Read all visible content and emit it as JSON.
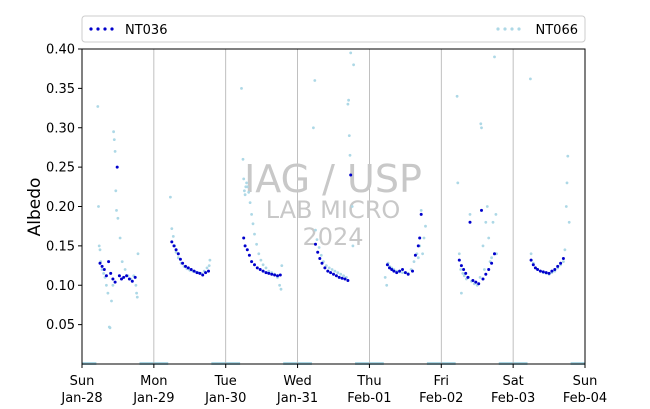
{
  "chart_data": {
    "type": "scatter",
    "title": "",
    "ylabel": "Albedo",
    "xlabel": "",
    "ylim": [
      0.0,
      0.4
    ],
    "yticks": [
      0.05,
      0.1,
      0.15,
      0.2,
      0.25,
      0.3,
      0.35,
      0.4
    ],
    "ytick_labels": [
      "0.05",
      "0.10",
      "0.15",
      "0.20",
      "0.25",
      "0.30",
      "0.35",
      "0.40"
    ],
    "xlim_days": [
      0,
      7
    ],
    "xticks": [
      {
        "day": 0,
        "weekday": "Sun",
        "date": "Jan-28"
      },
      {
        "day": 1,
        "weekday": "Mon",
        "date": "Jan-29"
      },
      {
        "day": 2,
        "weekday": "Tue",
        "date": "Jan-30"
      },
      {
        "day": 3,
        "weekday": "Wed",
        "date": "Jan-31"
      },
      {
        "day": 4,
        "weekday": "Thu",
        "date": "Feb-01"
      },
      {
        "day": 5,
        "weekday": "Fri",
        "date": "Feb-02"
      },
      {
        "day": 6,
        "weekday": "Sat",
        "date": "Feb-03"
      },
      {
        "day": 7,
        "weekday": "Sun",
        "date": "Feb-04"
      }
    ],
    "grid": "vertical at day boundaries",
    "legend_placement": "top, above plot",
    "watermark": [
      "IAG / USP",
      "LAB MICRO",
      "2024"
    ],
    "series": [
      {
        "name": "NT036",
        "color": "#0000cc",
        "points": [
          [
            0.25,
            0.128
          ],
          [
            0.28,
            0.124
          ],
          [
            0.31,
            0.12
          ],
          [
            0.34,
            0.112
          ],
          [
            0.37,
            0.13
          ],
          [
            0.4,
            0.115
          ],
          [
            0.43,
            0.108
          ],
          [
            0.46,
            0.104
          ],
          [
            0.49,
            0.25
          ],
          [
            0.52,
            0.112
          ],
          [
            0.55,
            0.108
          ],
          [
            0.58,
            0.11
          ],
          [
            0.62,
            0.112
          ],
          [
            0.66,
            0.108
          ],
          [
            0.7,
            0.105
          ],
          [
            0.74,
            0.11
          ],
          [
            1.25,
            0.155
          ],
          [
            1.28,
            0.15
          ],
          [
            1.31,
            0.145
          ],
          [
            1.34,
            0.14
          ],
          [
            1.37,
            0.133
          ],
          [
            1.4,
            0.128
          ],
          [
            1.44,
            0.124
          ],
          [
            1.48,
            0.122
          ],
          [
            1.52,
            0.12
          ],
          [
            1.56,
            0.118
          ],
          [
            1.6,
            0.116
          ],
          [
            1.64,
            0.115
          ],
          [
            1.68,
            0.113
          ],
          [
            1.72,
            0.116
          ],
          [
            1.76,
            0.118
          ],
          [
            2.25,
            0.16
          ],
          [
            2.27,
            0.15
          ],
          [
            2.3,
            0.145
          ],
          [
            2.33,
            0.138
          ],
          [
            2.36,
            0.13
          ],
          [
            2.4,
            0.126
          ],
          [
            2.44,
            0.122
          ],
          [
            2.48,
            0.12
          ],
          [
            2.52,
            0.118
          ],
          [
            2.56,
            0.116
          ],
          [
            2.6,
            0.115
          ],
          [
            2.64,
            0.114
          ],
          [
            2.68,
            0.113
          ],
          [
            2.72,
            0.112
          ],
          [
            2.76,
            0.113
          ],
          [
            3.25,
            0.152
          ],
          [
            3.28,
            0.142
          ],
          [
            3.31,
            0.134
          ],
          [
            3.34,
            0.128
          ],
          [
            3.38,
            0.122
          ],
          [
            3.42,
            0.118
          ],
          [
            3.46,
            0.116
          ],
          [
            3.5,
            0.114
          ],
          [
            3.54,
            0.112
          ],
          [
            3.58,
            0.11
          ],
          [
            3.62,
            0.109
          ],
          [
            3.66,
            0.108
          ],
          [
            3.7,
            0.106
          ],
          [
            3.74,
            0.24
          ],
          [
            4.25,
            0.126
          ],
          [
            4.28,
            0.122
          ],
          [
            4.31,
            0.12
          ],
          [
            4.34,
            0.118
          ],
          [
            4.38,
            0.116
          ],
          [
            4.42,
            0.118
          ],
          [
            4.46,
            0.12
          ],
          [
            4.5,
            0.116
          ],
          [
            4.54,
            0.114
          ],
          [
            4.6,
            0.118
          ],
          [
            4.64,
            0.138
          ],
          [
            4.68,
            0.15
          ],
          [
            4.7,
            0.16
          ],
          [
            4.72,
            0.19
          ],
          [
            5.25,
            0.132
          ],
          [
            5.28,
            0.125
          ],
          [
            5.31,
            0.12
          ],
          [
            5.34,
            0.115
          ],
          [
            5.37,
            0.11
          ],
          [
            5.4,
            0.18
          ],
          [
            5.44,
            0.106
          ],
          [
            5.48,
            0.104
          ],
          [
            5.52,
            0.102
          ],
          [
            5.56,
            0.195
          ],
          [
            5.58,
            0.108
          ],
          [
            5.62,
            0.114
          ],
          [
            5.66,
            0.12
          ],
          [
            5.7,
            0.128
          ],
          [
            5.74,
            0.14
          ],
          [
            6.25,
            0.132
          ],
          [
            6.28,
            0.126
          ],
          [
            6.31,
            0.122
          ],
          [
            6.34,
            0.12
          ],
          [
            6.38,
            0.118
          ],
          [
            6.42,
            0.117
          ],
          [
            6.46,
            0.116
          ],
          [
            6.5,
            0.115
          ],
          [
            6.54,
            0.118
          ],
          [
            6.58,
            0.12
          ],
          [
            6.62,
            0.124
          ],
          [
            6.66,
            0.128
          ],
          [
            6.7,
            0.134
          ]
        ]
      },
      {
        "name": "NT066",
        "color": "#add8e6",
        "points": [
          [
            0.22,
            0.327
          ],
          [
            0.23,
            0.2
          ],
          [
            0.24,
            0.15
          ],
          [
            0.25,
            0.145
          ],
          [
            0.26,
            0.13
          ],
          [
            0.28,
            0.12
          ],
          [
            0.3,
            0.115
          ],
          [
            0.32,
            0.11
          ],
          [
            0.34,
            0.1
          ],
          [
            0.36,
            0.09
          ],
          [
            0.38,
            0.047
          ],
          [
            0.39,
            0.046
          ],
          [
            0.41,
            0.08
          ],
          [
            0.43,
            0.1
          ],
          [
            0.44,
            0.295
          ],
          [
            0.45,
            0.285
          ],
          [
            0.46,
            0.27
          ],
          [
            0.47,
            0.22
          ],
          [
            0.48,
            0.195
          ],
          [
            0.5,
            0.185
          ],
          [
            0.53,
            0.16
          ],
          [
            0.56,
            0.13
          ],
          [
            0.6,
            0.12
          ],
          [
            0.64,
            0.112
          ],
          [
            0.68,
            0.108
          ],
          [
            0.72,
            0.112
          ],
          [
            0.75,
            0.1
          ],
          [
            0.76,
            0.09
          ],
          [
            0.77,
            0.085
          ],
          [
            0.78,
            0.14
          ],
          [
            1.23,
            0.212
          ],
          [
            1.25,
            0.172
          ],
          [
            1.27,
            0.162
          ],
          [
            1.29,
            0.15
          ],
          [
            1.31,
            0.142
          ],
          [
            1.34,
            0.135
          ],
          [
            1.38,
            0.128
          ],
          [
            1.42,
            0.124
          ],
          [
            1.46,
            0.121
          ],
          [
            1.5,
            0.119
          ],
          [
            1.54,
            0.118
          ],
          [
            1.58,
            0.117
          ],
          [
            1.62,
            0.116
          ],
          [
            1.66,
            0.115
          ],
          [
            1.7,
            0.118
          ],
          [
            1.74,
            0.122
          ],
          [
            1.77,
            0.125
          ],
          [
            1.78,
            0.132
          ],
          [
            2.22,
            0.35
          ],
          [
            2.24,
            0.26
          ],
          [
            2.25,
            0.235
          ],
          [
            2.26,
            0.22
          ],
          [
            2.27,
            0.215
          ],
          [
            2.28,
            0.225
          ],
          [
            2.29,
            0.23
          ],
          [
            2.3,
            0.225
          ],
          [
            2.32,
            0.218
          ],
          [
            2.34,
            0.205
          ],
          [
            2.36,
            0.19
          ],
          [
            2.38,
            0.178
          ],
          [
            2.4,
            0.165
          ],
          [
            2.43,
            0.152
          ],
          [
            2.46,
            0.14
          ],
          [
            2.49,
            0.132
          ],
          [
            2.52,
            0.126
          ],
          [
            2.56,
            0.122
          ],
          [
            2.6,
            0.118
          ],
          [
            2.64,
            0.116
          ],
          [
            2.68,
            0.114
          ],
          [
            2.72,
            0.11
          ],
          [
            2.75,
            0.1
          ],
          [
            2.77,
            0.095
          ],
          [
            2.78,
            0.125
          ],
          [
            3.22,
            0.3
          ],
          [
            3.24,
            0.36
          ],
          [
            3.25,
            0.17
          ],
          [
            3.27,
            0.158
          ],
          [
            3.3,
            0.148
          ],
          [
            3.33,
            0.138
          ],
          [
            3.36,
            0.13
          ],
          [
            3.4,
            0.125
          ],
          [
            3.44,
            0.122
          ],
          [
            3.48,
            0.12
          ],
          [
            3.52,
            0.118
          ],
          [
            3.56,
            0.116
          ],
          [
            3.6,
            0.114
          ],
          [
            3.64,
            0.112
          ],
          [
            3.68,
            0.11
          ],
          [
            3.7,
            0.33
          ],
          [
            3.71,
            0.335
          ],
          [
            3.72,
            0.29
          ],
          [
            3.73,
            0.265
          ],
          [
            3.74,
            0.395
          ],
          [
            3.76,
            0.2
          ],
          [
            3.77,
            0.15
          ],
          [
            3.78,
            0.38
          ],
          [
            4.22,
            0.11
          ],
          [
            4.24,
            0.1
          ],
          [
            4.26,
            0.128
          ],
          [
            4.28,
            0.124
          ],
          [
            4.31,
            0.122
          ],
          [
            4.34,
            0.12
          ],
          [
            4.38,
            0.118
          ],
          [
            4.42,
            0.117
          ],
          [
            4.46,
            0.116
          ],
          [
            4.5,
            0.116
          ],
          [
            4.54,
            0.115
          ],
          [
            4.58,
            0.12
          ],
          [
            4.62,
            0.13
          ],
          [
            4.66,
            0.14
          ],
          [
            4.68,
            0.135
          ],
          [
            4.7,
            0.15
          ],
          [
            4.72,
            0.195
          ],
          [
            4.74,
            0.14
          ],
          [
            4.76,
            0.16
          ],
          [
            4.78,
            0.175
          ],
          [
            5.22,
            0.34
          ],
          [
            5.23,
            0.23
          ],
          [
            5.25,
            0.14
          ],
          [
            5.27,
            0.12
          ],
          [
            5.28,
            0.09
          ],
          [
            5.3,
            0.115
          ],
          [
            5.32,
            0.112
          ],
          [
            5.35,
            0.108
          ],
          [
            5.38,
            0.11
          ],
          [
            5.4,
            0.19
          ],
          [
            5.42,
            0.105
          ],
          [
            5.46,
            0.102
          ],
          [
            5.5,
            0.1
          ],
          [
            5.54,
            0.11
          ],
          [
            5.55,
            0.305
          ],
          [
            5.56,
            0.3
          ],
          [
            5.58,
            0.15
          ],
          [
            5.6,
            0.12
          ],
          [
            5.62,
            0.18
          ],
          [
            5.64,
            0.2
          ],
          [
            5.66,
            0.16
          ],
          [
            5.68,
            0.13
          ],
          [
            5.7,
            0.135
          ],
          [
            5.72,
            0.18
          ],
          [
            5.74,
            0.39
          ],
          [
            5.76,
            0.19
          ],
          [
            5.77,
            0.14
          ],
          [
            6.24,
            0.362
          ],
          [
            6.25,
            0.14
          ],
          [
            6.28,
            0.128
          ],
          [
            6.31,
            0.122
          ],
          [
            6.34,
            0.12
          ],
          [
            6.38,
            0.118
          ],
          [
            6.42,
            0.116
          ],
          [
            6.46,
            0.115
          ],
          [
            6.5,
            0.114
          ],
          [
            6.54,
            0.116
          ],
          [
            6.58,
            0.118
          ],
          [
            6.62,
            0.122
          ],
          [
            6.66,
            0.126
          ],
          [
            6.7,
            0.13
          ],
          [
            6.72,
            0.145
          ],
          [
            6.74,
            0.2
          ],
          [
            6.75,
            0.23
          ],
          [
            6.76,
            0.264
          ],
          [
            6.78,
            0.18
          ]
        ]
      }
    ]
  }
}
